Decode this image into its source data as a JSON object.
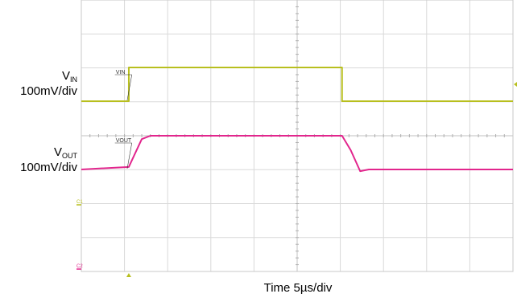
{
  "chart_data": {
    "type": "line",
    "xlabel": "Time 5µs/div",
    "x_unit": "µs",
    "x_per_div": 5,
    "xlim": [
      0,
      50
    ],
    "grid": true,
    "series": [
      {
        "name": "VIN",
        "channel_marker": "C1",
        "label_main": "V",
        "label_sub": "IN",
        "scale": "100mV/div",
        "color": "#b8bf1e",
        "x": [
          0,
          5.5,
          5.5,
          30.2,
          30.2,
          50
        ],
        "y": [
          -2.0,
          -2.0,
          2.0,
          2.0,
          -2.0,
          -2.0
        ],
        "y_unit": "mV relative to mid-level"
      },
      {
        "name": "VOUT",
        "channel_marker": "C2",
        "label_main": "V",
        "label_sub": "OUT",
        "scale": "100mV/div",
        "color": "#e2268d",
        "x": [
          0,
          5.5,
          7.0,
          8.0,
          30.2,
          31.2,
          32.3,
          33.3,
          34.0,
          50
        ],
        "y": [
          -2.0,
          -1.7,
          1.6,
          2.0,
          2.0,
          0.3,
          -2.2,
          -2.0,
          -2.0,
          -2.0
        ],
        "y_unit": "mV relative to mid-level"
      }
    ]
  }
}
